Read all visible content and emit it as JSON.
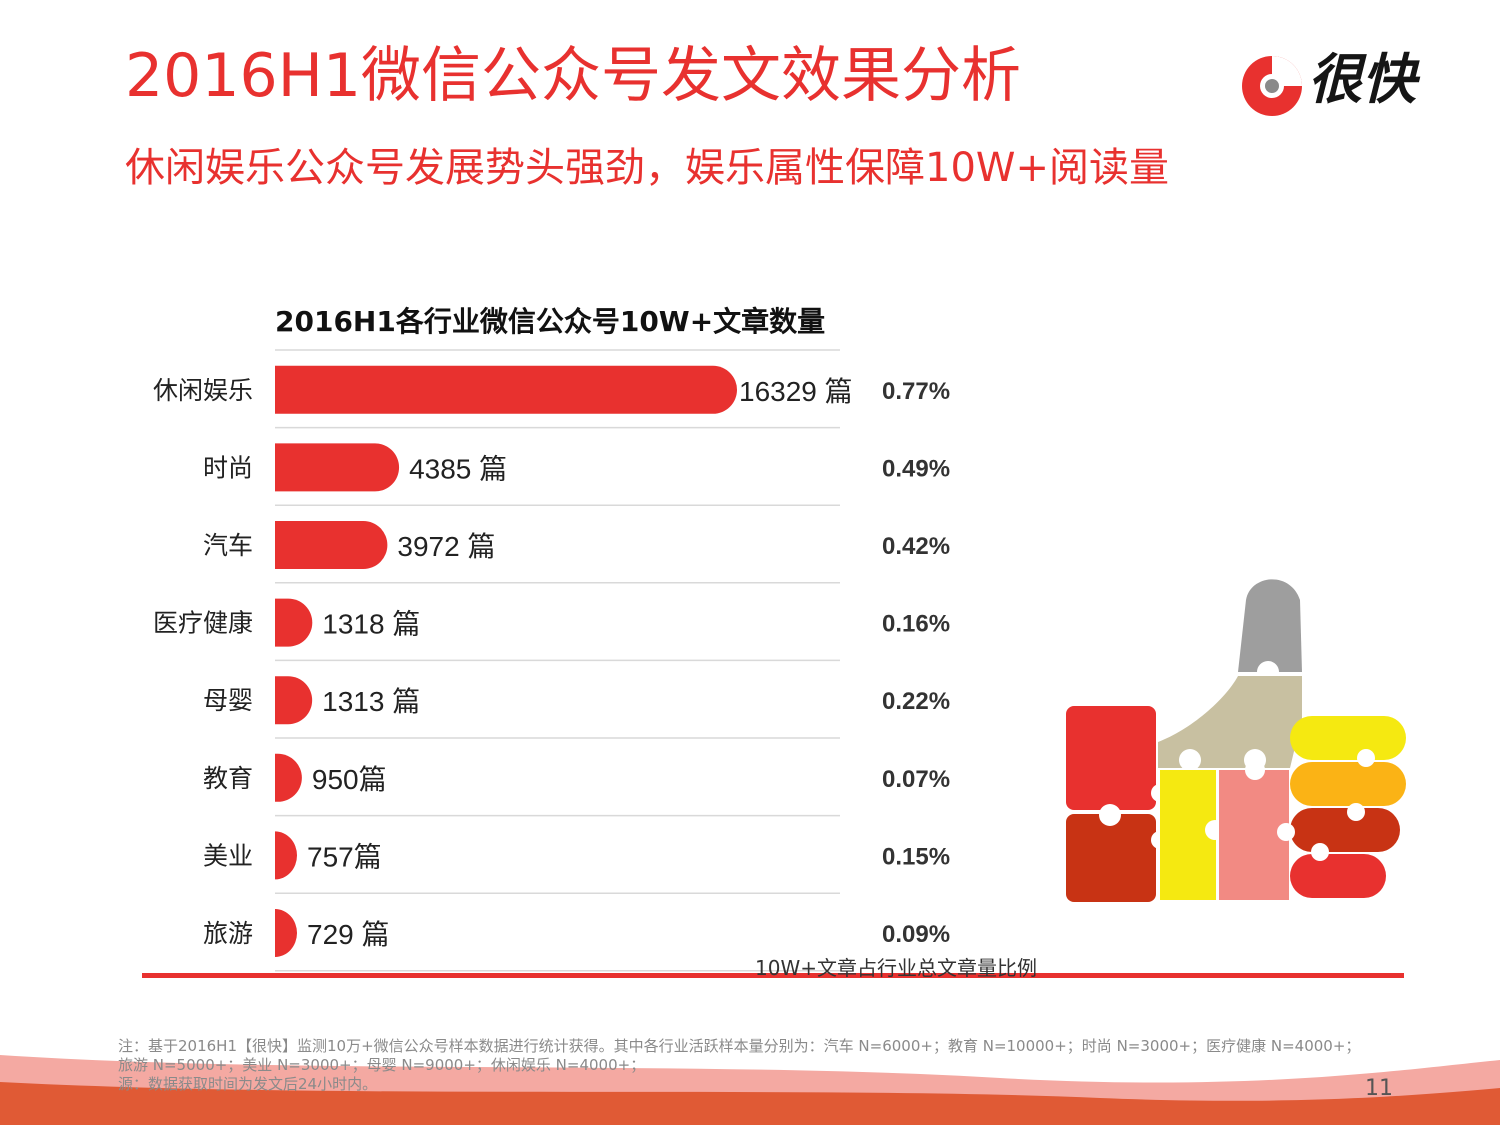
{
  "header": {
    "title": "2016H1微信公众号发文效果分析",
    "subtitle": "休闲娱乐公众号发展势头强劲，娱乐属性保障10W+阅读量",
    "logo_text": "很快"
  },
  "chart_data": {
    "type": "bar",
    "orientation": "horizontal",
    "title": "2016H1各行业微信公众号10W+文章数量",
    "categories": [
      "休闲娱乐",
      "时尚",
      "汽车",
      "医疗健康",
      "母婴",
      "教育",
      "美业",
      "旅游"
    ],
    "values": [
      16329,
      4385,
      3972,
      1318,
      1313,
      950,
      757,
      729
    ],
    "value_labels": [
      "16329 篇",
      "4385 篇",
      "3972 篇",
      "1318  篇",
      "1313  篇",
      "950篇",
      "757篇",
      "729 篇"
    ],
    "percentages": [
      "0.77%",
      "0.49%",
      "0.42%",
      "0.16%",
      "0.22%",
      "0.07%",
      "0.15%",
      "0.09%"
    ],
    "percent_caption": "10W+文章占行业总文章量比例",
    "bar_color": "#e8312f"
  },
  "footer": {
    "note": "注：基于2016H1【很快】监测10万+微信公众号样本数据进行统计获得。其中各行业活跃样本量分别为：汽车 N=6000+；教育 N=10000+；时尚 N=3000+；医疗健康 N=4000+；旅游 N=5000+；美业 N=3000+；母婴 N=9000+；休闲娱乐 N=4000+；",
    "note2": "源：数据获取时间为发文后24小时内。",
    "page_number": "11"
  },
  "colors": {
    "accent": "#e8312f",
    "wave_light": "#f4a9a2",
    "wave_dark": "#e05a35"
  },
  "decorations": {
    "thumbs_up": "thumbs-up-puzzle-icon"
  }
}
